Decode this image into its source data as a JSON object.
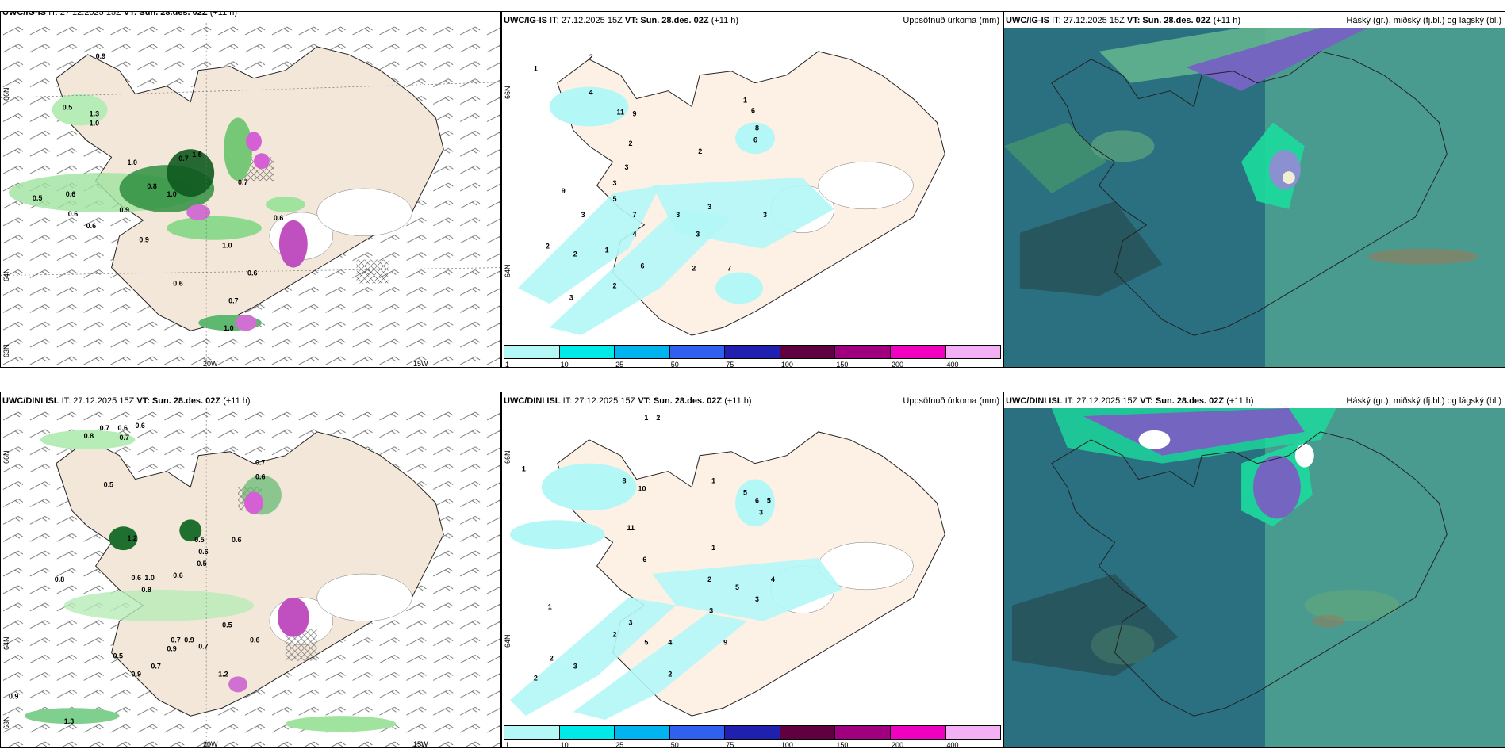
{
  "panels": {
    "top_left": {
      "header": {
        "model": "UWC/IG-IS",
        "it": "IT: 27.12.2025 15Z",
        "vt": "VT: Sun. 28.des. 02Z",
        "lead": "(+11 h)",
        "right": ""
      }
    },
    "top_mid": {
      "header": {
        "model": "UWC/IG-IS",
        "it": "IT: 27.12.2025 15Z",
        "vt": "VT: Sun. 28.des. 02Z",
        "lead": "(+11 h)",
        "right": "Uppsöfnuð úrkoma (mm)"
      }
    },
    "top_right": {
      "header": {
        "model": "UWC/IG-IS",
        "it": "IT: 27.12.2025 15Z",
        "vt": "VT: Sun. 28.des. 02Z",
        "lead": "(+11 h)",
        "right": "Háský (gr.), miðský (fj.bl.) og lágský (bl.)"
      }
    },
    "bot_left": {
      "header": {
        "model": "UWC/DINI ISL",
        "it": "IT: 27.12.2025 15Z",
        "vt": "VT: Sun. 28.des. 02Z",
        "lead": "(+11 h)",
        "right": ""
      }
    },
    "bot_mid": {
      "header": {
        "model": "UWC/DINI ISL",
        "it": "IT: 27.12.2025 15Z",
        "vt": "VT: Sun. 28.des. 02Z",
        "lead": "(+11 h)",
        "right": "Uppsöfnuð úrkoma (mm)"
      }
    },
    "bot_right": {
      "header": {
        "model": "UWC/DINI ISL",
        "it": "IT: 27.12.2025 15Z",
        "vt": "VT: Sun. 28.des. 02Z",
        "lead": "(+11 h)",
        "right": "Háský (gr.), miðský (fj.bl.) og lágský (bl.)"
      }
    }
  },
  "axes": {
    "lon_20w": "20W",
    "lon_15w": "15W",
    "lat_66n": "66N",
    "lat_64n": "64N",
    "lat_63n": "63N"
  },
  "colorbar": {
    "colors": [
      "#b3f7f7",
      "#00e8e8",
      "#00b4f0",
      "#3060f0",
      "#2020b0",
      "#600040",
      "#a00080",
      "#f000c0",
      "#f4b0f4"
    ],
    "ticks": [
      "1",
      "10",
      "25",
      "50",
      "75",
      "100",
      "150",
      "200",
      "400"
    ]
  },
  "map_values": {
    "tl": [
      "0.9",
      "0.5",
      "1.3",
      "1.0",
      "1.0",
      "0.7",
      "0.8",
      "1.0",
      "0.5",
      "0.6",
      "0.6",
      "0.6",
      "0.9",
      "1.0",
      "0.7",
      "0.6",
      "0.6",
      "0.6",
      "0.7",
      "1.0",
      "1.5",
      "0.9"
    ],
    "tm": [
      "1",
      "2",
      "4",
      "11",
      "9",
      "2",
      "1",
      "6",
      "8",
      "6",
      "2",
      "3",
      "3",
      "9",
      "3",
      "5",
      "7",
      "3",
      "3",
      "4",
      "3",
      "2",
      "2",
      "6",
      "3",
      "2",
      "7",
      "3",
      "1",
      "2"
    ],
    "bl": [
      "0.7",
      "0.6",
      "0.6",
      "0.8",
      "0.7",
      "0.5",
      "1.2",
      "0.7",
      "0.6",
      "0.5",
      "0.6",
      "0.8",
      "0.6",
      "0.8",
      "0.6",
      "1.0",
      "0.5",
      "0.6",
      "0.5",
      "0.7",
      "0.9",
      "0.7",
      "0.6",
      "0.9",
      "0.9",
      "1.3",
      "0.7",
      "0.9",
      "0.5",
      "1.2"
    ],
    "bm": [
      "1",
      "2",
      "1",
      "8",
      "10",
      "11",
      "1",
      "5",
      "6",
      "5",
      "3",
      "1",
      "6",
      "2",
      "4",
      "5",
      "3",
      "3",
      "2",
      "5",
      "4",
      "9",
      "3",
      "2",
      "2",
      "3",
      "1",
      "2"
    ]
  }
}
